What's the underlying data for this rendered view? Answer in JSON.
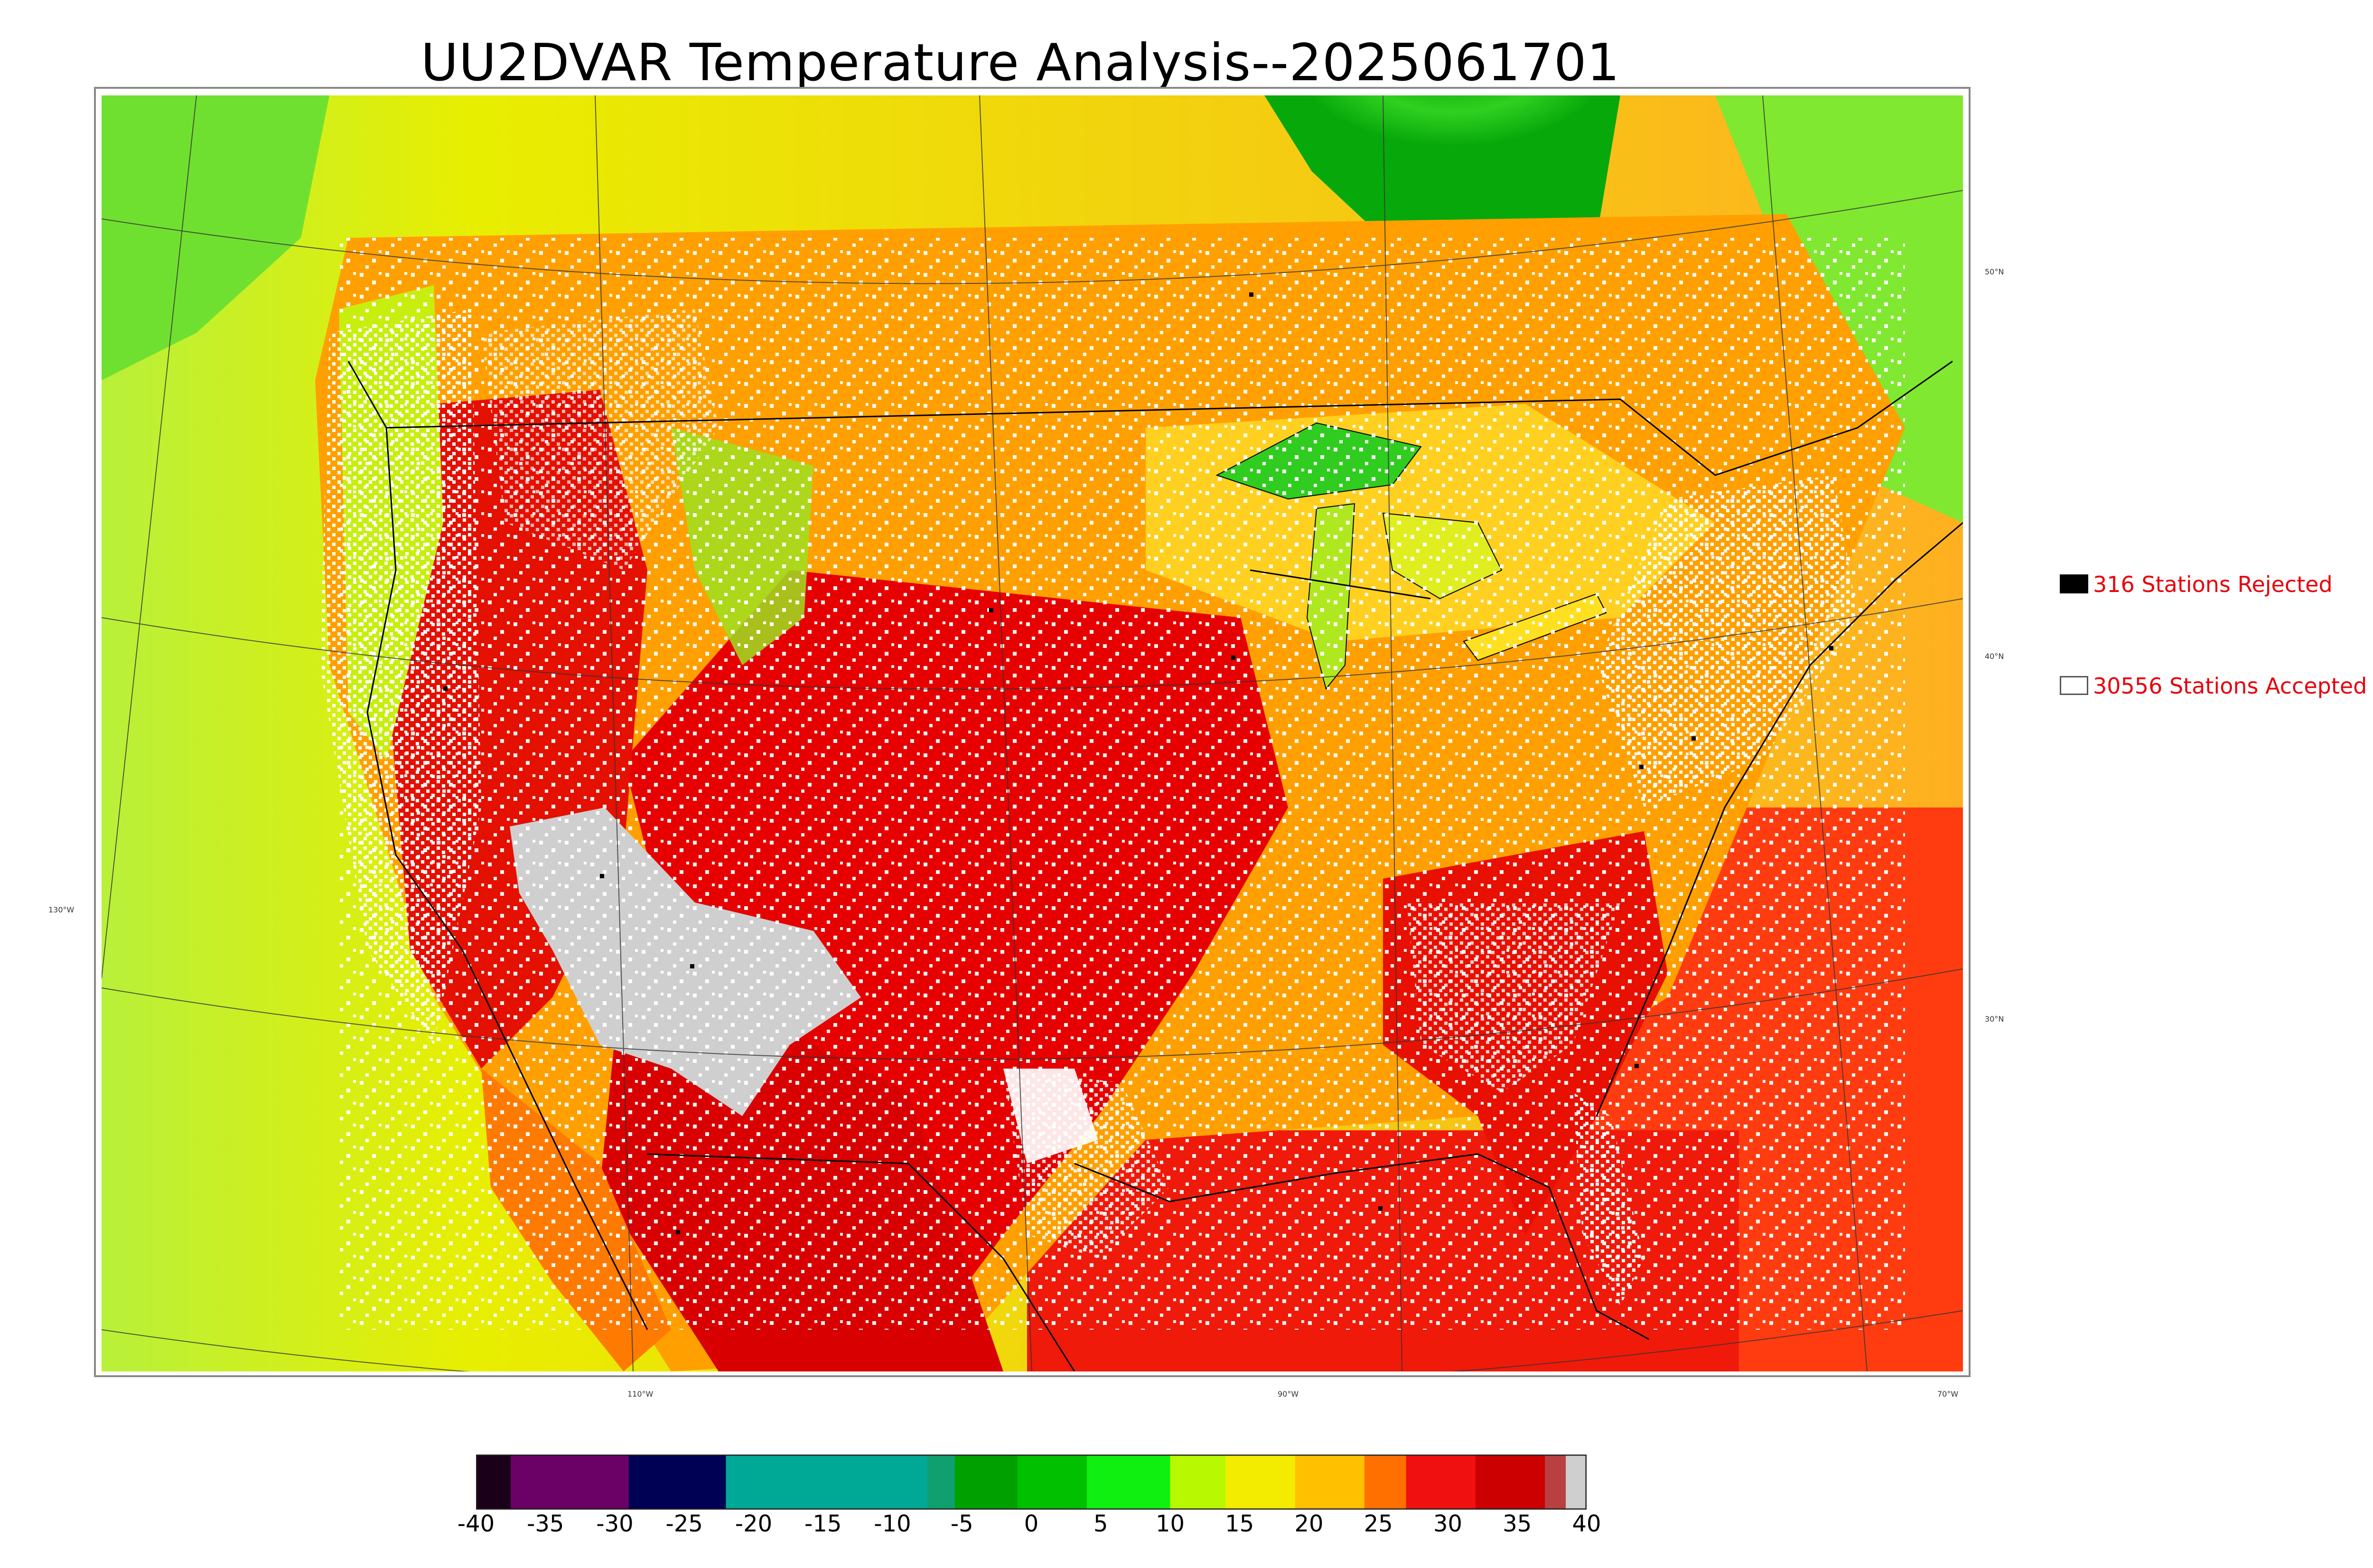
{
  "title": "UU2DVAR Temperature Analysis--2025061701",
  "legend": {
    "rejected": {
      "label": "316 Stations Rejected",
      "fill": "#000000"
    },
    "accepted": {
      "label": "30556 Stations Accepted",
      "fill": "#ffffff"
    },
    "text_color": "#e8000b"
  },
  "map": {
    "latitude_labels": [
      "50°N",
      "40°N",
      "30°N"
    ],
    "longitude_labels": [
      "130°W",
      "110°W",
      "90°W",
      "70°W"
    ]
  },
  "colorbar": {
    "ticks": [
      "-40",
      "-35",
      "-30",
      "-25",
      "-20",
      "-15",
      "-10",
      "-5",
      "0",
      "5",
      "10",
      "15",
      "20",
      "25",
      "30",
      "35",
      "40"
    ],
    "range": [
      -40,
      40
    ],
    "segments": [
      {
        "from": -40,
        "to": -37.5,
        "color": "#1a0018"
      },
      {
        "from": -37.5,
        "to": -29,
        "color": "#6b0066"
      },
      {
        "from": -29,
        "to": -22,
        "color": "#000055"
      },
      {
        "from": -22,
        "to": -7.5,
        "color": "#00a896"
      },
      {
        "from": -7.5,
        "to": -5.5,
        "color": "#10a070"
      },
      {
        "from": -5.5,
        "to": -1,
        "color": "#00a000"
      },
      {
        "from": -1,
        "to": 4,
        "color": "#00c000"
      },
      {
        "from": 4,
        "to": 10,
        "color": "#10f010"
      },
      {
        "from": 10,
        "to": 14,
        "color": "#b8f800"
      },
      {
        "from": 14,
        "to": 19,
        "color": "#f4ec00"
      },
      {
        "from": 19,
        "to": 24,
        "color": "#ffc000"
      },
      {
        "from": 24,
        "to": 27,
        "color": "#ff7000"
      },
      {
        "from": 27,
        "to": 32,
        "color": "#f01010"
      },
      {
        "from": 32,
        "to": 37,
        "color": "#cc0000"
      },
      {
        "from": 37,
        "to": 38.5,
        "color": "#b84040"
      },
      {
        "from": 38.5,
        "to": 40,
        "color": "#cfcfcf"
      }
    ]
  }
}
